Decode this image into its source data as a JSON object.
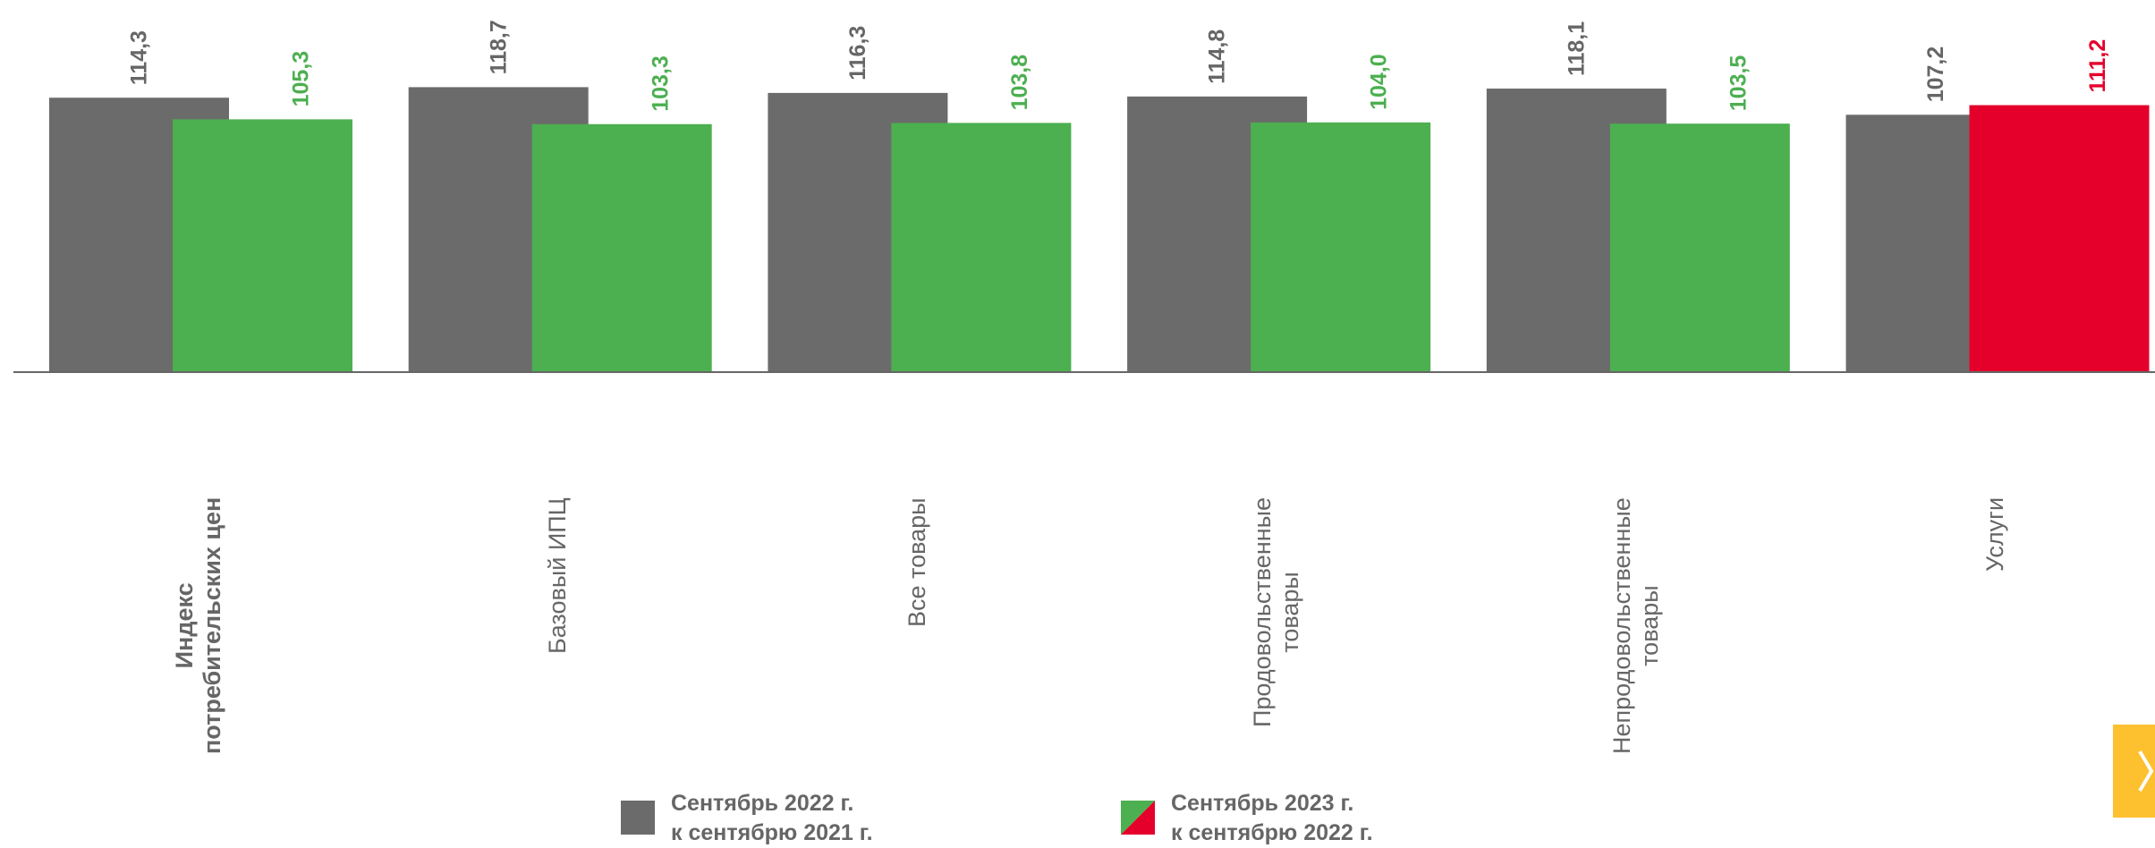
{
  "chart_data": {
    "type": "bar",
    "categories": [
      "Индекс\nпотребительских цен",
      "Базовый ИПЦ",
      "Все товары",
      "Продовольственные\nтовары",
      "Непродовольственные\nтовары",
      "Услуги"
    ],
    "series": [
      {
        "name": "Сентябрь 2022 г.\nк сентябрю 2021 г.",
        "color": "#6b6b6b",
        "values": [
          114.3,
          118.7,
          116.3,
          114.8,
          118.1,
          107.2
        ],
        "value_labels": [
          "114,3",
          "118,7",
          "116,3",
          "114,8",
          "118,1",
          "107,2"
        ]
      },
      {
        "name": "Сентябрь 2023 г.\nк сентябрю 2022 г.",
        "color": "#4caf50",
        "colors": [
          "#4caf50",
          "#4caf50",
          "#4caf50",
          "#4caf50",
          "#4caf50",
          "#e4002b"
        ],
        "values": [
          105.3,
          103.3,
          103.8,
          104.0,
          103.5,
          111.2
        ],
        "value_labels": [
          "105,3",
          "103,3",
          "103,8",
          "104,0",
          "103,5",
          "111,2"
        ]
      }
    ],
    "ylim": [
      0,
      155
    ]
  }
}
